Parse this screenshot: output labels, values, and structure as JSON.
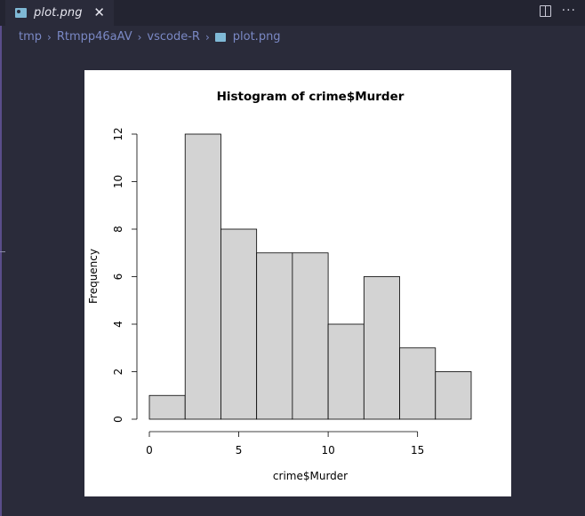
{
  "tab": {
    "label": "plot.png",
    "close_icon": "close-icon",
    "file_icon": "image-file-icon"
  },
  "actions": {
    "split_icon": "split-editor-icon",
    "more_icon": "more-actions-icon"
  },
  "breadcrumb": [
    "tmp",
    "Rtmpp46aAV",
    "vscode-R",
    "plot.png"
  ],
  "colors": {
    "background": "#2a2b3a",
    "tabbar": "#232431",
    "breadcrumb_text": "#7a88c4",
    "bar_fill": "#d3d3d3",
    "plot_bg": "#ffffff"
  },
  "chart_data": {
    "type": "bar",
    "title": "Histogram of crime$Murder",
    "xlabel": "crime$Murder",
    "ylabel": "Frequency",
    "bins": [
      [
        0,
        2
      ],
      [
        2,
        4
      ],
      [
        4,
        6
      ],
      [
        6,
        8
      ],
      [
        8,
        10
      ],
      [
        10,
        12
      ],
      [
        12,
        14
      ],
      [
        14,
        16
      ],
      [
        16,
        18
      ]
    ],
    "values": [
      1,
      12,
      8,
      7,
      7,
      4,
      6,
      3,
      2
    ],
    "xticks": [
      0,
      5,
      10,
      15
    ],
    "yticks": [
      0,
      2,
      4,
      6,
      8,
      10,
      12
    ],
    "xlim": [
      0,
      18
    ],
    "ylim": [
      0,
      12
    ],
    "grid": false
  }
}
